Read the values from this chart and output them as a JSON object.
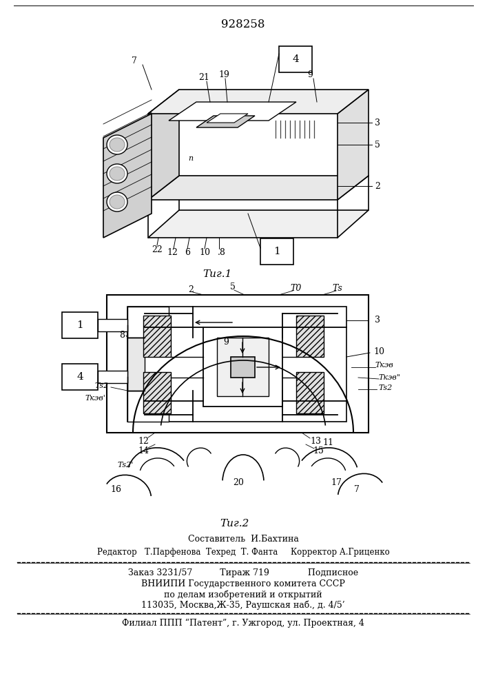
{
  "patent_number": "928258",
  "composer": "Составитель  И.Бахтина",
  "editor_line": "Редактор   Т.Парфенова  Техред  Т. Фанта     Корректор А.Гриценко",
  "order_line": "Заказ 3231/57          Тираж 719              Подписное",
  "institute1": "ВНИИПИ Государственного комитета СССР",
  "institute2": "по делам изобретений и открытий",
  "institute3": "113035, Москва,Ж-35, Раушская наб., д. 4/5’",
  "branch": "Филиал ППП “Патент”, г. Ужгород, ул. Проектная, 4",
  "bg_color": "#ffffff",
  "line_color": "#000000",
  "text_color": "#000000"
}
